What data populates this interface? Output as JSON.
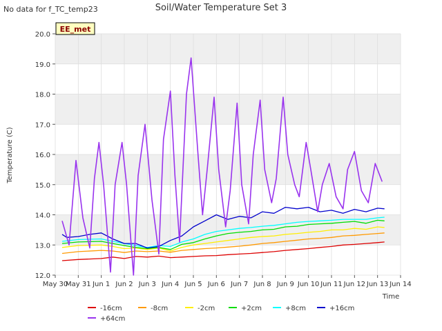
{
  "chart_data": {
    "type": "line",
    "title": "Soil/Water Temperature Set 3",
    "corner_note": "No data for f_TC_temp23",
    "badge": "EE_met",
    "xlabel": "Time",
    "ylabel": "Temperature (C)",
    "xlim": [
      0,
      15
    ],
    "ylim": [
      12.0,
      20.0
    ],
    "x_ticks": [
      {
        "v": 0,
        "label": "May 30"
      },
      {
        "v": 1,
        "label": "May 31"
      },
      {
        "v": 2,
        "label": "Jun 1"
      },
      {
        "v": 3,
        "label": "Jun 2"
      },
      {
        "v": 4,
        "label": "Jun 3"
      },
      {
        "v": 5,
        "label": "Jun 4"
      },
      {
        "v": 6,
        "label": "Jun 5"
      },
      {
        "v": 7,
        "label": "Jun 6"
      },
      {
        "v": 8,
        "label": "Jun 7"
      },
      {
        "v": 9,
        "label": "Jun 8"
      },
      {
        "v": 10,
        "label": "Jun 9"
      },
      {
        "v": 11,
        "label": "Jun 10"
      },
      {
        "v": 12,
        "label": "Jun 11"
      },
      {
        "v": 13,
        "label": "Jun 12"
      },
      {
        "v": 14,
        "label": "Jun 13"
      },
      {
        "v": 15,
        "label": "Jun 14"
      }
    ],
    "y_ticks": [
      {
        "v": 12,
        "label": "12.0"
      },
      {
        "v": 13,
        "label": "13.0"
      },
      {
        "v": 14,
        "label": "14.0"
      },
      {
        "v": 15,
        "label": "15.0"
      },
      {
        "v": 16,
        "label": "16.0"
      },
      {
        "v": 17,
        "label": "17.0"
      },
      {
        "v": 18,
        "label": "18.0"
      },
      {
        "v": 19,
        "label": "19.0"
      },
      {
        "v": 20,
        "label": "20.0"
      }
    ],
    "grid": true,
    "legend_position": "bottom",
    "series": [
      {
        "name": "-16cm",
        "color": "#dd0000",
        "x": [
          0.3,
          1,
          2,
          2.5,
          3,
          3.5,
          4,
          4.5,
          5,
          5.5,
          6,
          6.5,
          7,
          7.5,
          8,
          8.5,
          9,
          9.5,
          10,
          10.5,
          11,
          11.5,
          12,
          12.5,
          13,
          13.5,
          14,
          14.3
        ],
        "y": [
          12.48,
          12.52,
          12.55,
          12.6,
          12.55,
          12.62,
          12.6,
          12.63,
          12.58,
          12.6,
          12.62,
          12.64,
          12.65,
          12.68,
          12.7,
          12.72,
          12.75,
          12.78,
          12.82,
          12.85,
          12.88,
          12.92,
          12.95,
          13.0,
          13.02,
          13.05,
          13.08,
          13.1
        ]
      },
      {
        "name": "-8cm",
        "color": "#ff9900",
        "x": [
          0.3,
          1,
          2,
          2.5,
          3,
          3.5,
          4,
          4.5,
          5,
          5.5,
          6,
          6.5,
          7,
          7.5,
          8,
          8.5,
          9,
          9.5,
          10,
          10.5,
          11,
          11.5,
          12,
          12.5,
          13,
          13.5,
          14,
          14.3
        ],
        "y": [
          12.72,
          12.78,
          12.82,
          12.8,
          12.75,
          12.8,
          12.78,
          12.8,
          12.76,
          12.82,
          12.85,
          12.88,
          12.9,
          12.93,
          12.96,
          13.0,
          13.05,
          13.08,
          13.12,
          13.16,
          13.2,
          13.22,
          13.25,
          13.3,
          13.32,
          13.35,
          13.38,
          13.4
        ]
      },
      {
        "name": "-2cm",
        "color": "#ffee00",
        "x": [
          0.3,
          1,
          2,
          2.5,
          3,
          3.5,
          4,
          4.5,
          5,
          5.5,
          6,
          6.5,
          7,
          7.5,
          8,
          8.5,
          9,
          9.5,
          10,
          10.5,
          11,
          11.5,
          12,
          12.5,
          13,
          13.5,
          14,
          14.3
        ],
        "y": [
          12.92,
          12.98,
          13.0,
          12.95,
          12.88,
          12.9,
          12.85,
          12.9,
          12.8,
          12.92,
          13.0,
          13.05,
          13.1,
          13.15,
          13.2,
          13.25,
          13.28,
          13.3,
          13.35,
          13.38,
          13.42,
          13.45,
          13.5,
          13.5,
          13.55,
          13.52,
          13.6,
          13.58
        ]
      },
      {
        "name": "+2cm",
        "color": "#00dd00",
        "x": [
          0.3,
          1,
          2,
          2.5,
          3,
          3.5,
          4,
          4.5,
          5,
          5.5,
          6,
          6.5,
          7,
          7.5,
          8,
          8.5,
          9,
          9.5,
          10,
          10.5,
          11,
          11.5,
          12,
          12.5,
          13,
          13.5,
          14,
          14.3
        ],
        "y": [
          13.05,
          13.1,
          13.12,
          13.05,
          12.98,
          12.92,
          12.88,
          12.92,
          12.85,
          13.02,
          13.08,
          13.2,
          13.3,
          13.38,
          13.42,
          13.45,
          13.5,
          13.52,
          13.6,
          13.62,
          13.68,
          13.7,
          13.72,
          13.75,
          13.78,
          13.72,
          13.82,
          13.8
        ]
      },
      {
        "name": "+8cm",
        "color": "#00ffff",
        "x": [
          0.3,
          1,
          2,
          2.5,
          3,
          3.5,
          4,
          4.5,
          5,
          5.5,
          6,
          6.5,
          7,
          7.5,
          8,
          8.5,
          9,
          9.5,
          10,
          10.5,
          11,
          11.5,
          12,
          12.5,
          13,
          13.5,
          14,
          14.3
        ],
        "y": [
          13.12,
          13.18,
          13.2,
          13.12,
          13.05,
          12.98,
          12.92,
          12.98,
          12.95,
          13.1,
          13.2,
          13.35,
          13.45,
          13.5,
          13.55,
          13.58,
          13.62,
          13.65,
          13.7,
          13.75,
          13.78,
          13.8,
          13.82,
          13.85,
          13.85,
          13.85,
          13.9,
          13.92
        ]
      },
      {
        "name": "+16cm",
        "color": "#0000cc",
        "x": [
          0.3,
          0.5,
          1,
          1.5,
          2,
          2.5,
          3,
          3.5,
          4,
          4.5,
          5,
          5.5,
          6,
          6.5,
          7,
          7.5,
          8,
          8.5,
          9,
          9.5,
          10,
          10.5,
          11,
          11.5,
          12,
          12.5,
          13,
          13.5,
          14,
          14.3
        ],
        "y": [
          13.35,
          13.25,
          13.28,
          13.35,
          13.4,
          13.2,
          13.05,
          13.05,
          12.9,
          12.95,
          13.15,
          13.3,
          13.6,
          13.8,
          14.0,
          13.85,
          13.95,
          13.9,
          14.1,
          14.05,
          14.25,
          14.2,
          14.25,
          14.1,
          14.15,
          14.05,
          14.18,
          14.1,
          14.22,
          14.2
        ]
      },
      {
        "name": "+64cm",
        "color": "#9933ee",
        "x": [
          0.3,
          0.6,
          0.9,
          1.2,
          1.5,
          1.7,
          1.9,
          2.1,
          2.4,
          2.6,
          2.9,
          3.1,
          3.4,
          3.6,
          3.9,
          4.2,
          4.5,
          4.7,
          5.0,
          5.2,
          5.4,
          5.7,
          5.9,
          6.2,
          6.4,
          6.6,
          6.9,
          7.1,
          7.4,
          7.6,
          7.9,
          8.1,
          8.4,
          8.6,
          8.9,
          9.1,
          9.4,
          9.6,
          9.9,
          10.1,
          10.4,
          10.6,
          10.9,
          11.1,
          11.4,
          11.6,
          11.9,
          12.2,
          12.5,
          12.7,
          13.0,
          13.3,
          13.6,
          13.9,
          14.2
        ],
        "y": [
          13.8,
          13.0,
          15.8,
          13.9,
          12.9,
          15.2,
          16.4,
          15.0,
          12.1,
          15.0,
          16.4,
          15.0,
          12.0,
          15.3,
          17.0,
          14.5,
          12.7,
          16.5,
          18.1,
          15.3,
          13.1,
          18.0,
          19.2,
          16.0,
          14.0,
          15.5,
          17.9,
          15.5,
          13.6,
          14.8,
          17.7,
          15.0,
          13.7,
          16.0,
          17.8,
          15.5,
          14.4,
          15.2,
          17.9,
          16.0,
          15.0,
          14.6,
          16.4,
          15.5,
          14.1,
          15.0,
          15.7,
          14.6,
          14.2,
          15.5,
          16.1,
          14.8,
          14.4,
          15.7,
          15.1
        ]
      }
    ]
  }
}
